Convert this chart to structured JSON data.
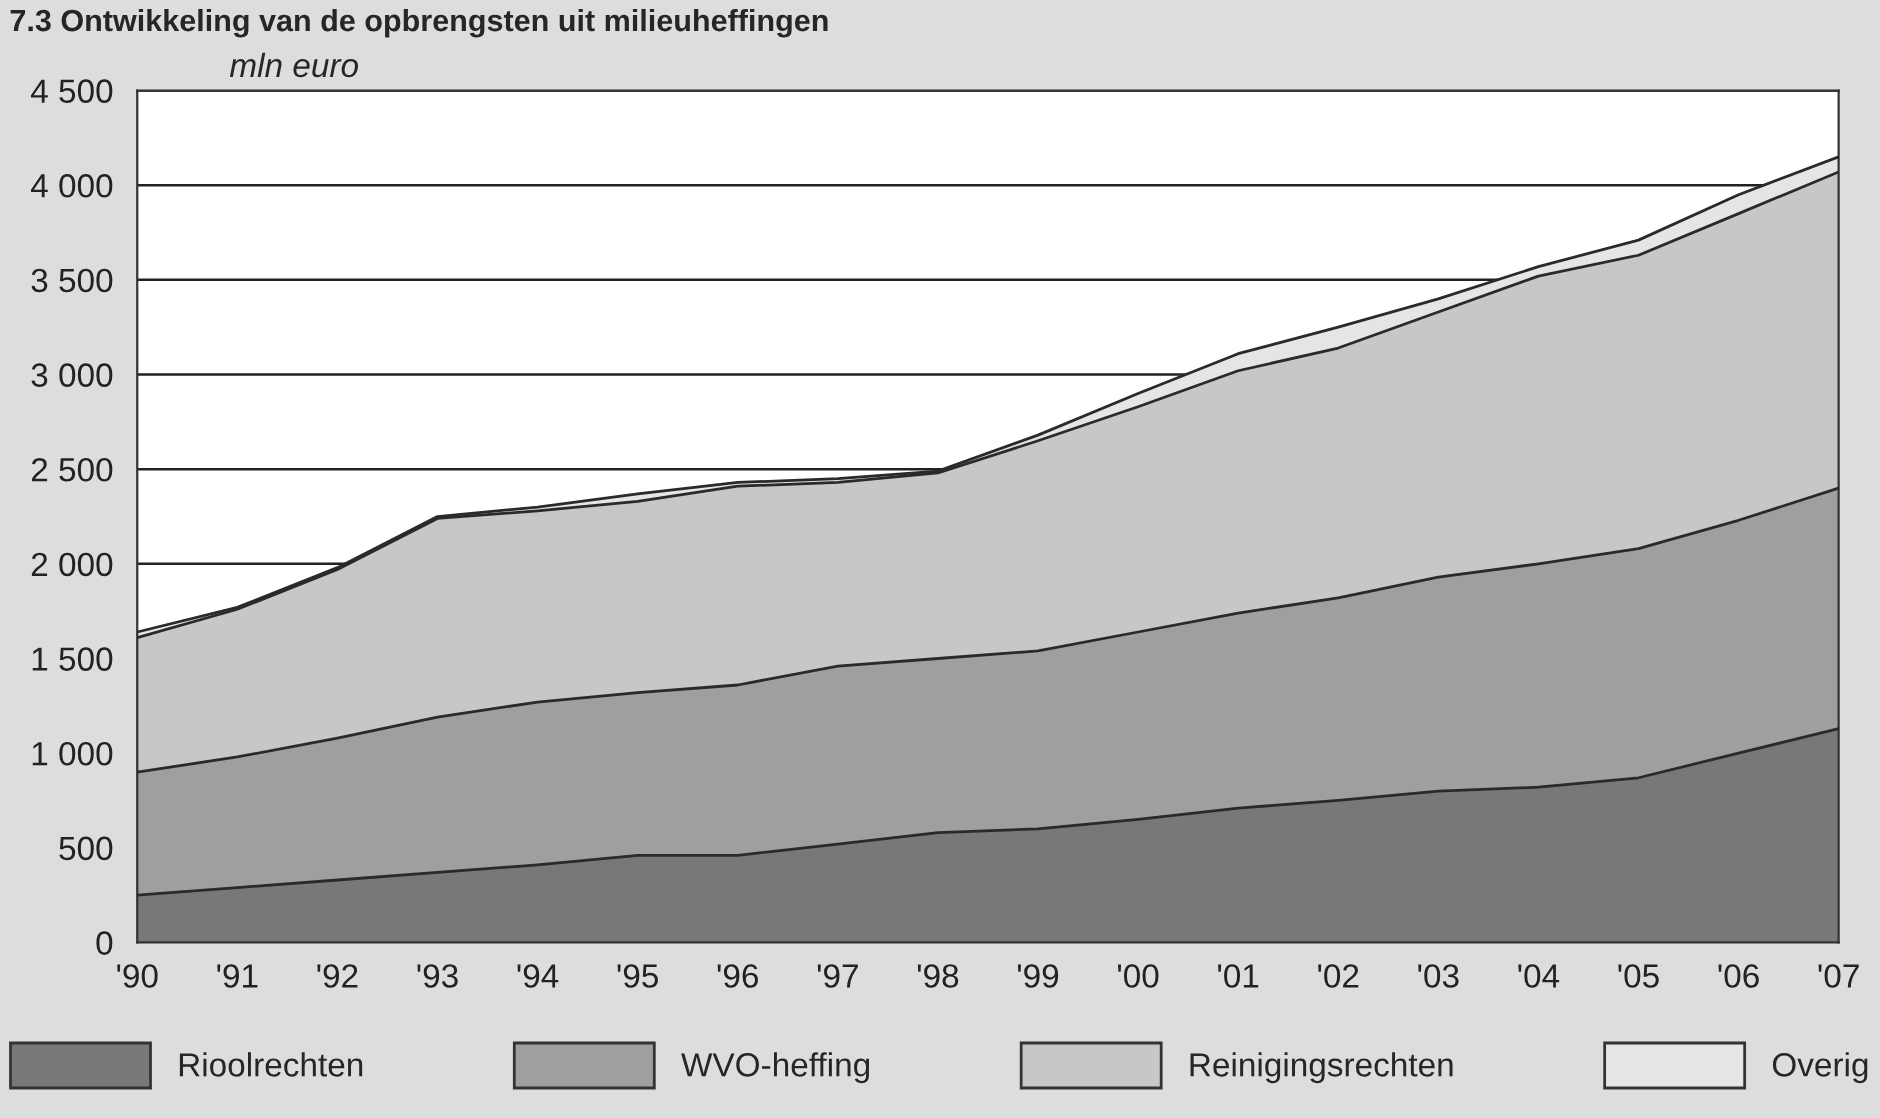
{
  "chart_data": {
    "type": "area",
    "stacked": true,
    "title": "7.3 Ontwikkeling van de opbrengsten uit milieuheffingen",
    "ylabel": "mln euro",
    "categories": [
      "'90",
      "'91",
      "'92",
      "'93",
      "'94",
      "'95",
      "'96",
      "'97",
      "'98",
      "'99",
      "'00",
      "'01",
      "'02",
      "'03",
      "'04",
      "'05",
      "'06",
      "'07"
    ],
    "series": [
      {
        "name": "Rioolrechten",
        "color": "#77787a",
        "values": [
          250,
          290,
          330,
          370,
          410,
          460,
          460,
          520,
          580,
          600,
          650,
          710,
          750,
          800,
          820,
          870,
          1000,
          1130
        ]
      },
      {
        "name": "WVO-heffing",
        "color": "#9e9fa1",
        "values": [
          650,
          690,
          750,
          820,
          860,
          860,
          900,
          940,
          920,
          940,
          990,
          1030,
          1070,
          1130,
          1180,
          1210,
          1230,
          1270
        ]
      },
      {
        "name": "Reinigingsrechten",
        "color": "#c6c7c9",
        "values": [
          710,
          780,
          890,
          1050,
          1010,
          1010,
          1050,
          970,
          980,
          1110,
          1190,
          1280,
          1320,
          1400,
          1520,
          1550,
          1620,
          1670
        ]
      },
      {
        "name": "Overig",
        "color": "#e4e5e6",
        "values": [
          30,
          10,
          10,
          10,
          20,
          40,
          20,
          20,
          10,
          30,
          70,
          90,
          110,
          70,
          50,
          80,
          100,
          80
        ]
      }
    ],
    "ylim": [
      0,
      4500
    ],
    "yticks": [
      0,
      500,
      {
        "value": 1000,
        "label": "1 000"
      },
      {
        "value": 1500,
        "label": "1 500"
      },
      {
        "value": 2000,
        "label": "2 000"
      },
      {
        "value": 2500,
        "label": "2 500"
      },
      {
        "value": 3000,
        "label": "3 000"
      },
      {
        "value": 3500,
        "label": "3 500"
      },
      {
        "value": 4000,
        "label": "4 000"
      },
      {
        "value": 4500,
        "label": "4 500"
      }
    ],
    "grid": "y",
    "legend": "bottom"
  }
}
